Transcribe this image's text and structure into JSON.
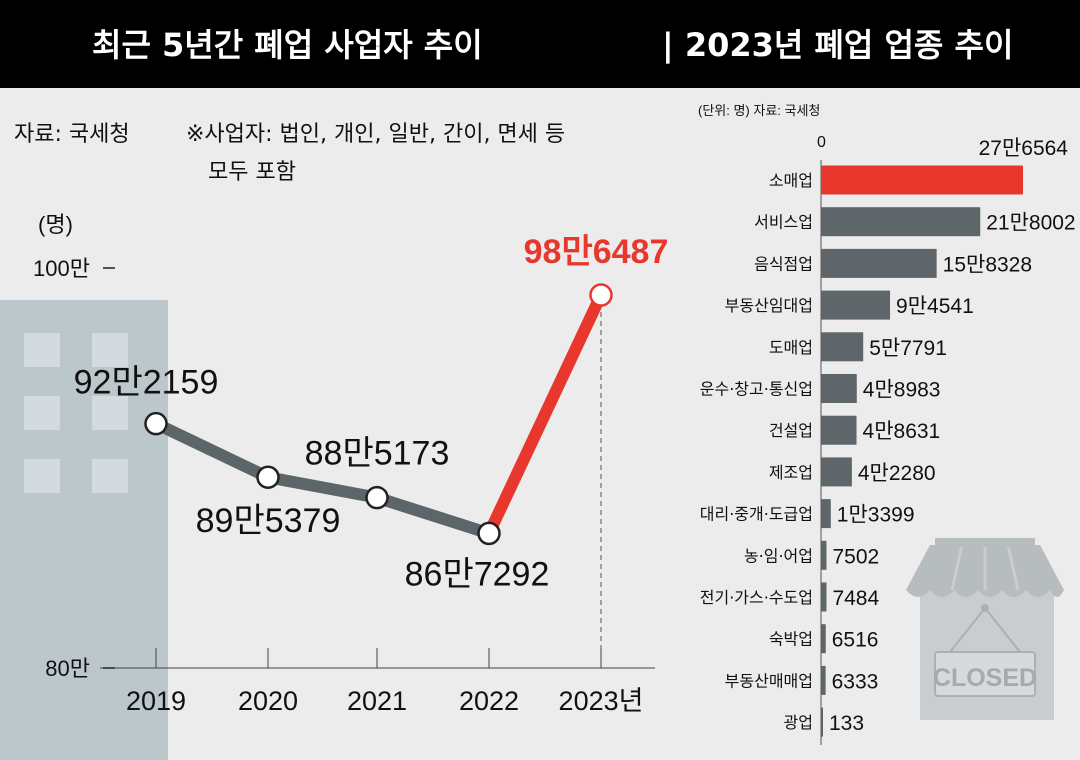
{
  "header": {
    "left_title": "최근 5년간 폐업 사업자 추이",
    "right_title": "|  2023년 폐업 업종 추이"
  },
  "left_panel": {
    "source": "자료: 국세청",
    "note_line1": "※사업자: 법인, 개인, 일반, 간이, 면세 등",
    "note_line2": "모두 포함",
    "unit": "(명)"
  },
  "right_panel": {
    "unit_source": "(단위: 명)  자료: 국세청",
    "zero_label": "0",
    "closed_sign": "CLOSED"
  },
  "colors": {
    "accent": "#e8382d",
    "series": "#5c6669",
    "bar": "#5e6669",
    "background": "#ececec",
    "building": "#bcc7cc"
  },
  "chart_data": [
    {
      "type": "line",
      "title": "최근 5년간 폐업 사업자 추이",
      "ylabel": "(명)",
      "ylim": [
        800000,
        1000000
      ],
      "yticks": [
        {
          "value": 1000000,
          "label": "100만"
        },
        {
          "value": 800000,
          "label": "80만"
        }
      ],
      "x": [
        "2019",
        "2020",
        "2021",
        "2022",
        "2023"
      ],
      "x_tick_labels": [
        "2019",
        "2020",
        "2021",
        "2022",
        "2023년"
      ],
      "series": [
        {
          "name": "폐업 사업자",
          "values": [
            922159,
            895379,
            885173,
            867292,
            986487
          ],
          "labels": [
            "92만2159",
            "89만5379",
            "88만5173",
            "86만7292",
            "98만6487"
          ]
        }
      ],
      "highlight": {
        "from_index": 3,
        "to_index": 4
      }
    },
    {
      "type": "bar",
      "orientation": "horizontal",
      "title": "2023년 폐업 업종 추이",
      "unit": "명",
      "categories": [
        "소매업",
        "서비스업",
        "음식점업",
        "부동산임대업",
        "도매업",
        "운수·창고·통신업",
        "건설업",
        "제조업",
        "대리·중개·도급업",
        "농·임·어업",
        "전기·가스·수도업",
        "숙박업",
        "부동산매매업",
        "광업"
      ],
      "values": [
        276564,
        218002,
        158328,
        94541,
        57791,
        48983,
        48631,
        42280,
        13399,
        7502,
        7484,
        6516,
        6333,
        133
      ],
      "labels": [
        "27만6564",
        "21만8002",
        "15만8328",
        "9만4541",
        "5만7791",
        "4만8983",
        "4만8631",
        "4만2280",
        "1만3399",
        "7502",
        "7484",
        "6516",
        "6333",
        "133"
      ],
      "highlight_index": 0
    }
  ]
}
